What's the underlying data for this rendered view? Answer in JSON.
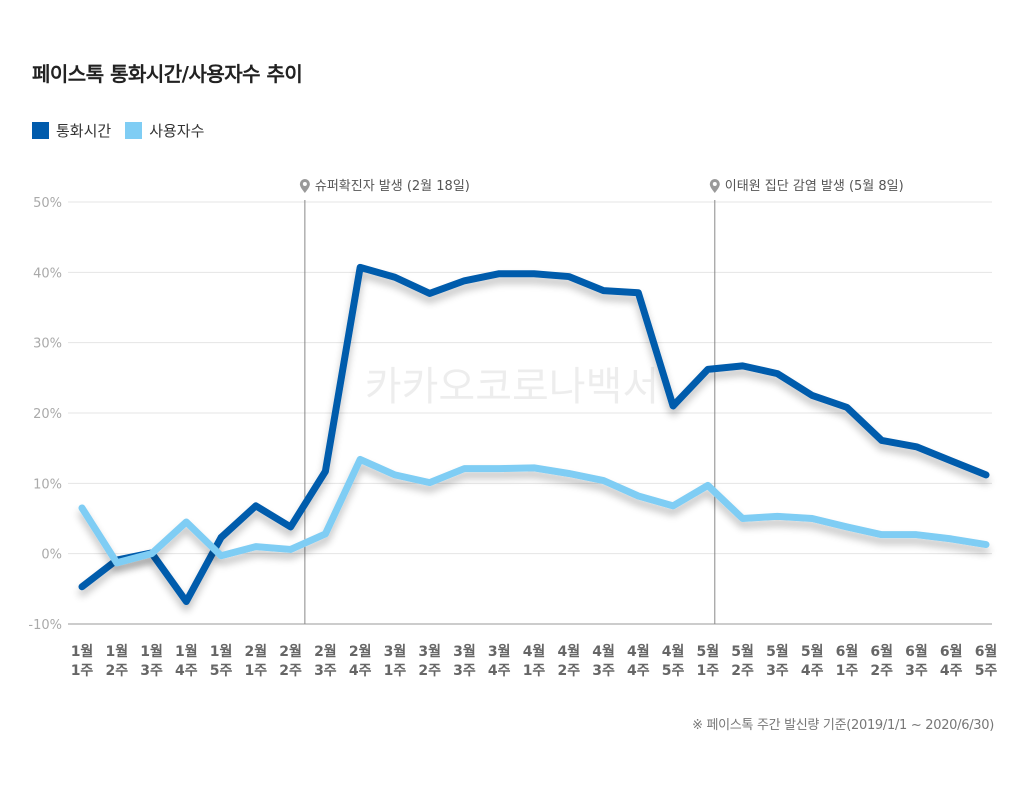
{
  "chart_data": {
    "type": "line",
    "title": "페이스톡 통화시간/사용자수 추이",
    "categories": [
      [
        "1월",
        "1주"
      ],
      [
        "1월",
        "2주"
      ],
      [
        "1월",
        "3주"
      ],
      [
        "1월",
        "4주"
      ],
      [
        "1월",
        "5주"
      ],
      [
        "2월",
        "1주"
      ],
      [
        "2월",
        "2주"
      ],
      [
        "2월",
        "3주"
      ],
      [
        "2월",
        "4주"
      ],
      [
        "3월",
        "1주"
      ],
      [
        "3월",
        "2주"
      ],
      [
        "3월",
        "3주"
      ],
      [
        "3월",
        "4주"
      ],
      [
        "4월",
        "1주"
      ],
      [
        "4월",
        "2주"
      ],
      [
        "4월",
        "3주"
      ],
      [
        "4월",
        "4주"
      ],
      [
        "4월",
        "5주"
      ],
      [
        "5월",
        "1주"
      ],
      [
        "5월",
        "2주"
      ],
      [
        "5월",
        "3주"
      ],
      [
        "5월",
        "4주"
      ],
      [
        "6월",
        "1주"
      ],
      [
        "6월",
        "2주"
      ],
      [
        "6월",
        "3주"
      ],
      [
        "6월",
        "4주"
      ],
      [
        "6월",
        "5주"
      ]
    ],
    "series": [
      {
        "name": "통화시간",
        "color": "#005bac",
        "values": [
          -4.7,
          -0.9,
          0.1,
          -6.8,
          2.3,
          6.8,
          3.8,
          11.7,
          40.7,
          39.3,
          37.0,
          38.8,
          39.8,
          39.8,
          39.4,
          37.4,
          37.1,
          21.0,
          26.2,
          26.7,
          25.6,
          22.5,
          20.8,
          16.1,
          15.2,
          13.2,
          11.2
        ]
      },
      {
        "name": "사용자수",
        "color": "#7fcdf4",
        "values": [
          6.5,
          -1.3,
          0.0,
          4.5,
          -0.3,
          1.0,
          0.6,
          2.8,
          13.4,
          11.2,
          10.1,
          12.1,
          12.1,
          12.2,
          11.4,
          10.4,
          8.2,
          6.8,
          9.7,
          5.0,
          5.3,
          5.0,
          3.8,
          2.7,
          2.7,
          2.1,
          1.3
        ]
      }
    ],
    "ylim": [
      -10,
      50
    ],
    "yticks": [
      -10,
      0,
      10,
      20,
      30,
      40,
      50
    ],
    "ytick_suffix": "%",
    "grid": true,
    "legend_placement": "top-left",
    "annotations": [
      {
        "label": "슈퍼확진자 발생 (2월 18일)",
        "at_category_index": 6.41
      },
      {
        "label": "이태원 집단 감염 발생 (5월 8일)",
        "at_category_index": 18.2
      }
    ],
    "watermark": "카카오코로나백서",
    "footnote": "※ 페이스톡 주간 발신량 기준(2019/1/1 ~ 2020/6/30)"
  }
}
